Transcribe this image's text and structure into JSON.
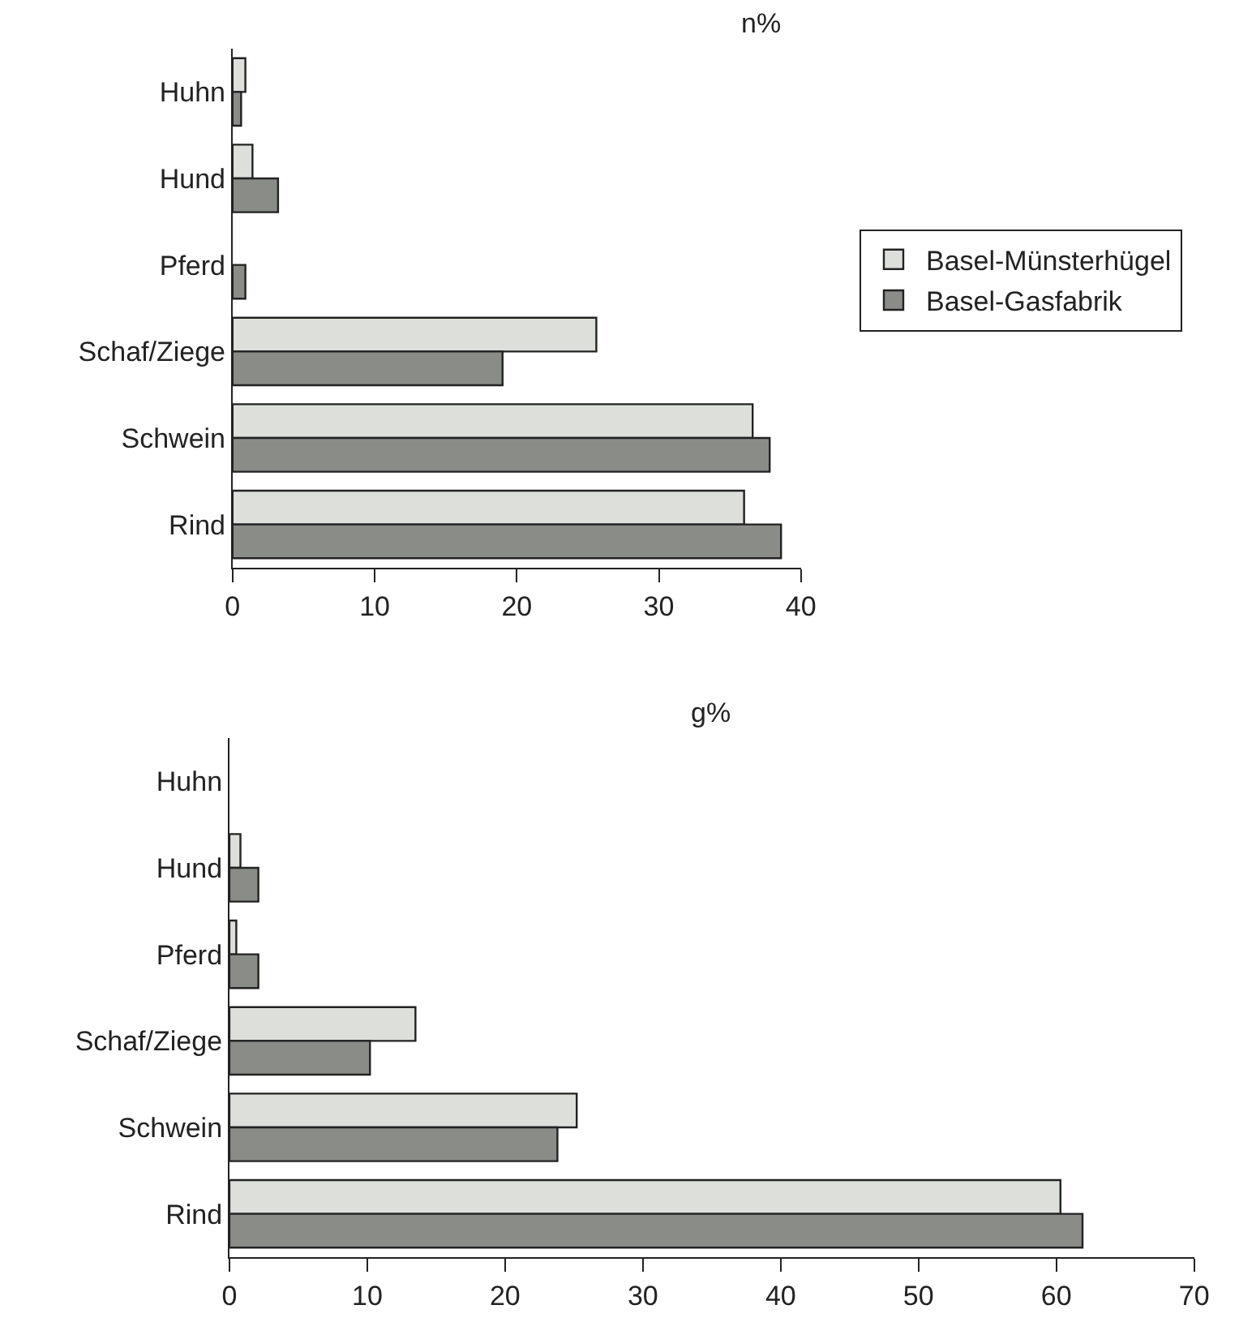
{
  "chart_data": [
    {
      "type": "bar",
      "orientation": "horizontal",
      "title": "n%",
      "categories": [
        "Huhn",
        "Hund",
        "Pferd",
        "Schaf/Ziege",
        "Schwein",
        "Rind"
      ],
      "xlim": [
        0,
        40
      ],
      "xticks": [
        0,
        10,
        20,
        30,
        40
      ],
      "legend": "right",
      "series": [
        {
          "name": "Basel-Münsterhügel",
          "color": "#dde0da",
          "values": [
            0.9,
            1.4,
            null,
            25.6,
            36.6,
            36.0
          ]
        },
        {
          "name": "Basel-Gasfabrik",
          "color": "#8a8c88",
          "values": [
            0.6,
            3.2,
            0.9,
            19.0,
            37.8,
            38.6
          ]
        }
      ]
    },
    {
      "type": "bar",
      "orientation": "horizontal",
      "title": "g%",
      "categories": [
        "Huhn",
        "Hund",
        "Pferd",
        "Schaf/Ziege",
        "Schwein",
        "Rind"
      ],
      "xlim": [
        0,
        70
      ],
      "xticks": [
        0,
        10,
        20,
        30,
        40,
        50,
        60,
        70
      ],
      "series": [
        {
          "color": "#dde0da",
          "values": [
            null,
            0.8,
            0.5,
            13.5,
            25.2,
            60.3
          ]
        },
        {
          "color": "#8a8c88",
          "values": [
            null,
            2.1,
            2.1,
            10.2,
            23.8,
            61.9
          ]
        }
      ]
    }
  ]
}
